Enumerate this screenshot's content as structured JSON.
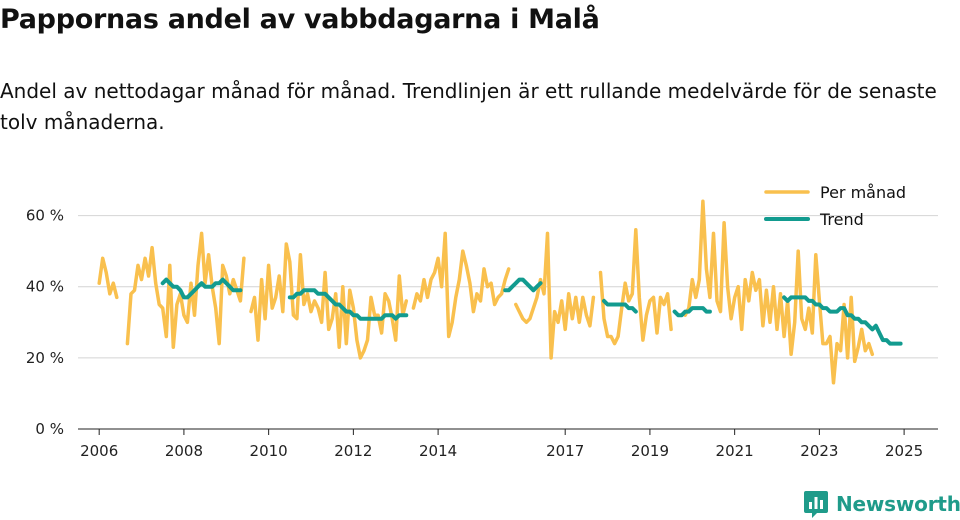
{
  "title": "Pappornas andel av vabbdagarna i Malå",
  "subtitle": "Andel av nettodagar månad för månad. Trendlinjen är ett rullande medelvärde för de senaste tolv månaderna.",
  "brand": {
    "name": "Newsworthy",
    "color": "#1f9b8a"
  },
  "chart_data": {
    "type": "line",
    "x_start": "2006-01",
    "xlim": [
      2005.5,
      2025.8
    ],
    "ylim": [
      0,
      70
    ],
    "yticks": [
      0,
      20,
      40,
      60
    ],
    "ytick_labels": [
      "0 %",
      "20 %",
      "40 %",
      "60 %"
    ],
    "xticks": [
      2006,
      2008,
      2010,
      2012,
      2014,
      2017,
      2019,
      2021,
      2023,
      2025
    ],
    "xtick_labels": [
      "2006",
      "2008",
      "2010",
      "2012",
      "2014",
      "2017",
      "2019",
      "2021",
      "2023",
      "2025"
    ],
    "grid": "horizontal",
    "legend_position": "top-right",
    "series": [
      {
        "name": "Per månad",
        "color": "#f9c04e",
        "values": [
          41,
          48,
          44,
          38,
          41,
          37,
          null,
          null,
          24,
          38,
          39,
          46,
          42,
          48,
          43,
          51,
          41,
          35,
          34,
          26,
          46,
          23,
          35,
          38,
          32,
          30,
          41,
          32,
          46,
          55,
          41,
          49,
          40,
          34,
          24,
          46,
          43,
          38,
          42,
          39,
          36,
          48,
          null,
          33,
          37,
          25,
          42,
          31,
          46,
          34,
          37,
          43,
          33,
          52,
          47,
          32,
          31,
          49,
          35,
          38,
          33,
          36,
          34,
          30,
          44,
          28,
          31,
          38,
          23,
          40,
          24,
          39,
          34,
          25,
          20,
          22,
          25,
          37,
          32,
          32,
          27,
          38,
          36,
          31,
          25,
          43,
          32,
          36,
          null,
          34,
          38,
          36,
          42,
          37,
          42,
          44,
          48,
          40,
          55,
          26,
          30,
          37,
          42,
          50,
          46,
          41,
          33,
          38,
          36,
          45,
          40,
          41,
          35,
          37,
          38,
          42,
          45,
          null,
          35,
          33,
          31,
          30,
          31,
          34,
          37,
          42,
          38,
          55,
          20,
          33,
          30,
          36,
          28,
          38,
          31,
          37,
          30,
          37,
          32,
          29,
          37,
          null,
          44,
          31,
          26,
          26,
          24,
          26,
          34,
          41,
          36,
          38,
          56,
          37,
          25,
          32,
          36,
          37,
          27,
          37,
          35,
          38,
          28,
          null,
          null,
          null,
          32,
          34,
          42,
          37,
          42,
          64,
          45,
          37,
          55,
          36,
          33,
          58,
          40,
          31,
          37,
          40,
          28,
          42,
          36,
          44,
          39,
          42,
          29,
          39,
          30,
          40,
          28,
          38,
          26,
          36,
          21,
          30,
          50,
          31,
          28,
          34,
          27,
          49,
          36,
          24,
          24,
          26,
          13,
          24,
          22,
          35,
          20,
          37,
          19,
          23,
          28,
          22,
          24,
          21
        ]
      },
      {
        "name": "Trend",
        "color": "#129b8f",
        "values": [
          null,
          null,
          null,
          null,
          null,
          null,
          null,
          null,
          null,
          null,
          null,
          null,
          null,
          null,
          null,
          null,
          null,
          null,
          41,
          42,
          41,
          40,
          40,
          39,
          37,
          37,
          38,
          39,
          40,
          41,
          40,
          40,
          40,
          41,
          41,
          42,
          41,
          40,
          39,
          39,
          39,
          null,
          null,
          null,
          null,
          null,
          null,
          null,
          null,
          null,
          null,
          null,
          null,
          null,
          37,
          37,
          38,
          38,
          39,
          39,
          39,
          39,
          38,
          38,
          38,
          37,
          36,
          35,
          35,
          34,
          33,
          33,
          32,
          32,
          31,
          31,
          31,
          31,
          31,
          31,
          31,
          32,
          32,
          32,
          31,
          32,
          32,
          32,
          null,
          null,
          null,
          null,
          null,
          null,
          null,
          null,
          null,
          null,
          null,
          null,
          null,
          null,
          null,
          null,
          null,
          null,
          null,
          null,
          null,
          null,
          null,
          null,
          null,
          null,
          null,
          39,
          39,
          40,
          41,
          42,
          42,
          41,
          40,
          39,
          40,
          41,
          null,
          null,
          null,
          null,
          null,
          null,
          null,
          null,
          null,
          null,
          null,
          null,
          null,
          null,
          null,
          null,
          null,
          36,
          35,
          35,
          35,
          35,
          35,
          35,
          34,
          34,
          33,
          null,
          null,
          null,
          null,
          null,
          null,
          null,
          null,
          null,
          null,
          33,
          32,
          32,
          33,
          33,
          34,
          34,
          34,
          34,
          33,
          33,
          null,
          null,
          null,
          null,
          null,
          null,
          null,
          null,
          null,
          null,
          null,
          null,
          null,
          null,
          null,
          null,
          null,
          null,
          null,
          null,
          37,
          36,
          37,
          37,
          37,
          37,
          37,
          36,
          36,
          35,
          35,
          34,
          34,
          33,
          33,
          33,
          34,
          34,
          32,
          32,
          31,
          31,
          30,
          30,
          29,
          28,
          29,
          27,
          25,
          25,
          24,
          24,
          24,
          24
        ]
      }
    ]
  }
}
